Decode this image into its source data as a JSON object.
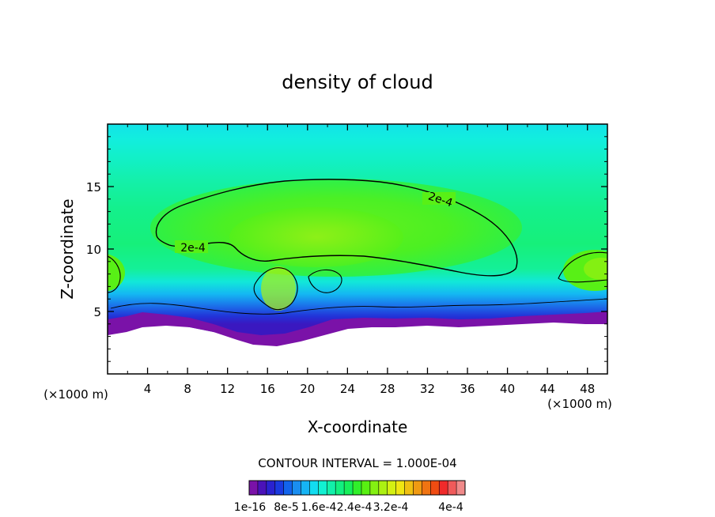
{
  "chart_data": {
    "type": "heatmap",
    "title": "density of cloud",
    "xlabel": "X-coordinate",
    "ylabel": "Z-coordinate",
    "x_unit_left": "(×1000 m)",
    "x_unit_right": "(×1000 m)",
    "xlim": [
      0,
      50
    ],
    "ylim": [
      0,
      20
    ],
    "x_ticks": [
      4,
      8,
      12,
      16,
      20,
      24,
      28,
      32,
      36,
      40,
      44,
      48
    ],
    "y_ticks": [
      5,
      10,
      15
    ],
    "contour_interval_text": "CONTOUR INTERVAL = 1.000E-04",
    "contour_labels": [
      {
        "text": "2e-4",
        "x": 33.2,
        "z": 13.8
      },
      {
        "text": "2e-4",
        "x": 8.7,
        "z": 10.0
      }
    ],
    "colorbar": {
      "colors": [
        "#7a12a8",
        "#4a12b8",
        "#2a22d0",
        "#1a3ae0",
        "#1264ec",
        "#1a8ef0",
        "#16b4f4",
        "#12dcf0",
        "#12f0d2",
        "#12f0aa",
        "#12f080",
        "#16f05a",
        "#30f02a",
        "#58f012",
        "#84f012",
        "#acf012",
        "#d4f012",
        "#f0e612",
        "#f0c012",
        "#f09a12",
        "#f07412",
        "#f04c12",
        "#f02a2a",
        "#f05a5a",
        "#f08a8a"
      ],
      "tick_labels": [
        "1e-16",
        "8e-5",
        "1.6e-4",
        "2.4e-4",
        "3.2e-4",
        "4e-4"
      ]
    }
  }
}
